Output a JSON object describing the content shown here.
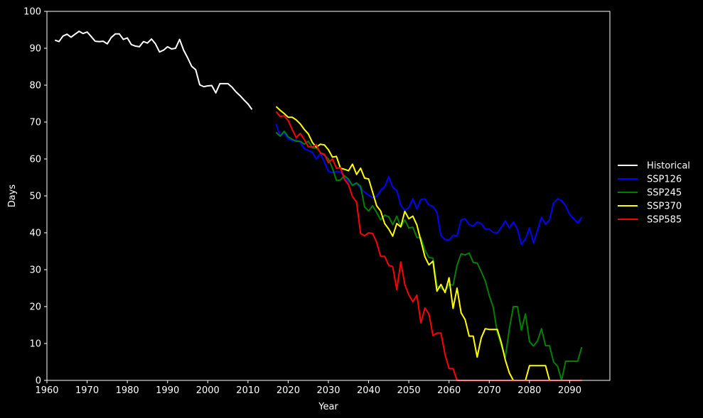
{
  "chart_data": {
    "type": "line",
    "title": "",
    "xlabel": "Year",
    "ylabel": "Days",
    "xlim": [
      1960,
      2100
    ],
    "ylim": [
      0,
      100
    ],
    "xticks": [
      1960,
      1970,
      1980,
      1990,
      2000,
      2010,
      2020,
      2030,
      2040,
      2050,
      2060,
      2070,
      2080,
      2090
    ],
    "yticks": [
      0,
      10,
      20,
      30,
      40,
      50,
      60,
      70,
      80,
      90,
      100
    ],
    "grid": false,
    "legend_position": "right, outside plot",
    "background": "#000000",
    "foreground": "#ffffff",
    "series": [
      {
        "name": "Historical",
        "color": "#ffffff",
        "x": [
          1962,
          1963,
          1964,
          1965,
          1966,
          1967,
          1968,
          1969,
          1970,
          1971,
          1972,
          1973,
          1974,
          1975,
          1976,
          1977,
          1978,
          1979,
          1980,
          1981,
          1982,
          1983,
          1984,
          1985,
          1986,
          1987,
          1988,
          1989,
          1990,
          1991,
          1992,
          1993,
          1994,
          1995,
          1996,
          1997,
          1998,
          1999,
          2000,
          2001,
          2002,
          2003,
          2004,
          2005,
          2006,
          2007,
          2008,
          2009,
          2010,
          2011
        ],
        "y": [
          92.2,
          91.8,
          93.3,
          93.8,
          93.0,
          93.8,
          94.6,
          94.0,
          94.4,
          93.2,
          91.9,
          91.8,
          91.9,
          91.2,
          92.9,
          93.9,
          93.9,
          92.4,
          92.8,
          91.0,
          90.6,
          90.4,
          91.8,
          91.4,
          92.5,
          91.2,
          89.0,
          89.5,
          90.4,
          89.8,
          90.0,
          92.4,
          89.5,
          87.4,
          85.1,
          84.2,
          80.1,
          79.6,
          79.8,
          79.9,
          77.9,
          80.4,
          80.4,
          80.4,
          79.5,
          78.2,
          77.2,
          76.0,
          74.9,
          73.4
        ]
      },
      {
        "name": "SSP126",
        "color": "#0000ff",
        "x": [
          2017,
          2018,
          2019,
          2020,
          2021,
          2022,
          2023,
          2024,
          2025,
          2026,
          2027,
          2028,
          2029,
          2030,
          2031,
          2032,
          2033,
          2034,
          2035,
          2036,
          2037,
          2038,
          2039,
          2040,
          2041,
          2042,
          2043,
          2044,
          2045,
          2046,
          2047,
          2048,
          2049,
          2050,
          2051,
          2052,
          2053,
          2054,
          2055,
          2056,
          2057,
          2058,
          2059,
          2060,
          2061,
          2062,
          2063,
          2064,
          2065,
          2066,
          2067,
          2068,
          2069,
          2070,
          2071,
          2072,
          2073,
          2074,
          2075,
          2076,
          2077,
          2078,
          2079,
          2080,
          2081,
          2082,
          2083,
          2084,
          2085,
          2086,
          2087,
          2088,
          2089,
          2090,
          2091,
          2092,
          2093
        ],
        "y": [
          69.5,
          66.2,
          67.0,
          65.5,
          65.0,
          65.2,
          64.5,
          62.8,
          62.3,
          61.8,
          60.0,
          61.5,
          59.2,
          56.7,
          56.3,
          56.6,
          56.5,
          55.0,
          54.0,
          53.0,
          53.5,
          52.0,
          51.0,
          50.2,
          49.5,
          49.8,
          51.5,
          52.5,
          55.2,
          52.3,
          51.5,
          47.5,
          46.0,
          46.8,
          49.2,
          46.5,
          49.0,
          49.2,
          47.5,
          47.2,
          45.5,
          39.2,
          38.2,
          38.0,
          39.3,
          39.2,
          43.5,
          43.8,
          42.2,
          41.8,
          42.9,
          42.5,
          41.0,
          41.0,
          40.1,
          40.0,
          41.5,
          43.2,
          41.3,
          42.9,
          41.0,
          36.9,
          38.3,
          41.3,
          37.3,
          40.7,
          44.2,
          42.3,
          43.5,
          48.1,
          49.2,
          48.7,
          47.3,
          45.0,
          43.8,
          42.7,
          44.2
        ]
      },
      {
        "name": "SSP245",
        "color": "#008000",
        "x": [
          2017,
          2018,
          2019,
          2020,
          2021,
          2022,
          2023,
          2024,
          2025,
          2026,
          2027,
          2028,
          2029,
          2030,
          2031,
          2032,
          2033,
          2034,
          2035,
          2036,
          2037,
          2038,
          2039,
          2040,
          2041,
          2042,
          2043,
          2044,
          2045,
          2046,
          2047,
          2048,
          2049,
          2050,
          2051,
          2052,
          2053,
          2054,
          2055,
          2056,
          2057,
          2058,
          2059,
          2060,
          2061,
          2062,
          2063,
          2064,
          2065,
          2066,
          2067,
          2068,
          2069,
          2070,
          2071,
          2072,
          2073,
          2074,
          2075,
          2076,
          2077,
          2078,
          2079,
          2080,
          2081,
          2082,
          2083,
          2084,
          2085,
          2086,
          2087,
          2088,
          2089,
          2090,
          2091,
          2092,
          2093
        ],
        "y": [
          67.2,
          66.2,
          67.5,
          66.0,
          65.3,
          64.8,
          64.8,
          64.0,
          64.8,
          63.0,
          63.0,
          61.8,
          61.0,
          60.0,
          57.5,
          54.2,
          54.3,
          55.5,
          54.5,
          52.8,
          53.5,
          52.6,
          47.0,
          45.9,
          47.3,
          45.5,
          43.5,
          44.8,
          44.3,
          42.2,
          44.5,
          41.6,
          43.5,
          41.3,
          41.5,
          38.7,
          38.7,
          35.3,
          33.3,
          33.1,
          25.5,
          25.0,
          24.2,
          26.0,
          25.8,
          31.2,
          34.3,
          34.0,
          34.5,
          32.0,
          31.8,
          29.5,
          27.0,
          23.0,
          19.8,
          13.0,
          9.4,
          6.3,
          14.0,
          20.0,
          20.0,
          13.6,
          18.0,
          10.5,
          9.3,
          10.7,
          14.0,
          9.4,
          9.4,
          5.0,
          3.8,
          0.0,
          5.2,
          5.2,
          5.2,
          5.2,
          9.0
        ]
      },
      {
        "name": "SSP370",
        "color": "#ffff00",
        "x": [
          2017,
          2018,
          2019,
          2020,
          2021,
          2022,
          2023,
          2024,
          2025,
          2026,
          2027,
          2028,
          2029,
          2030,
          2031,
          2032,
          2033,
          2034,
          2035,
          2036,
          2037,
          2038,
          2039,
          2040,
          2041,
          2042,
          2043,
          2044,
          2045,
          2046,
          2047,
          2048,
          2049,
          2050,
          2051,
          2052,
          2053,
          2054,
          2055,
          2056,
          2057,
          2058,
          2059,
          2060,
          2061,
          2062,
          2063,
          2064,
          2065,
          2066,
          2067,
          2068,
          2069,
          2070,
          2071,
          2072,
          2073,
          2074,
          2075,
          2076,
          2077,
          2078,
          2079,
          2080,
          2081,
          2082,
          2083,
          2084,
          2085,
          2086,
          2087,
          2088,
          2089,
          2090,
          2091,
          2092,
          2093
        ],
        "y": [
          74.2,
          73.2,
          72.3,
          71.3,
          71.3,
          70.6,
          69.5,
          68.0,
          66.8,
          64.5,
          63.2,
          64.0,
          63.8,
          62.5,
          60.5,
          60.7,
          57.5,
          57.2,
          56.8,
          58.6,
          55.8,
          57.5,
          54.8,
          54.6,
          51.0,
          47.3,
          45.9,
          42.5,
          41.0,
          39.1,
          42.5,
          41.6,
          45.8,
          43.8,
          44.5,
          42.1,
          37.8,
          33.5,
          31.3,
          32.3,
          24.2,
          26.0,
          23.8,
          27.8,
          19.5,
          25.0,
          18.3,
          16.5,
          12.0,
          12.0,
          6.3,
          11.5,
          14.0,
          13.8,
          13.8,
          13.8,
          10.2,
          5.5,
          2.0,
          0.0,
          0.0,
          0.0,
          0.0,
          4.0,
          4.0,
          4.0,
          4.0,
          4.0,
          0.0,
          0.0,
          0.0,
          0.0,
          0.0,
          0.0,
          0.0,
          0.0,
          0.0
        ]
      },
      {
        "name": "SSP585",
        "color": "#ff0000",
        "x": [
          2017,
          2018,
          2019,
          2020,
          2021,
          2022,
          2023,
          2024,
          2025,
          2026,
          2027,
          2028,
          2029,
          2030,
          2031,
          2032,
          2033,
          2034,
          2035,
          2036,
          2037,
          2038,
          2039,
          2040,
          2041,
          2042,
          2043,
          2044,
          2045,
          2046,
          2047,
          2048,
          2049,
          2050,
          2051,
          2052,
          2053,
          2054,
          2055,
          2056,
          2057,
          2058,
          2059,
          2060,
          2061,
          2062,
          2063,
          2064,
          2065,
          2066,
          2067,
          2068,
          2069,
          2070,
          2071,
          2072,
          2073,
          2074,
          2075,
          2076,
          2077,
          2078,
          2079,
          2080,
          2081,
          2082,
          2083,
          2084,
          2085,
          2086,
          2087,
          2088,
          2089,
          2090,
          2091,
          2092,
          2093
        ],
        "y": [
          72.8,
          71.5,
          71.7,
          70.4,
          68.0,
          65.8,
          66.9,
          65.3,
          63.3,
          63.2,
          63.9,
          61.6,
          61.3,
          59.0,
          60.0,
          57.5,
          57.6,
          54.5,
          53.0,
          49.8,
          48.3,
          39.8,
          39.2,
          40.0,
          39.8,
          37.4,
          33.6,
          33.6,
          31.2,
          30.8,
          24.6,
          32.1,
          26.0,
          23.2,
          21.3,
          23.1,
          15.6,
          19.6,
          18.0,
          12.2,
          12.8,
          12.8,
          7.0,
          3.2,
          3.2,
          0.0,
          0.0,
          0.0,
          0.0,
          0.0,
          0.0,
          0.0,
          0.0,
          0.0,
          0.0,
          0.0,
          0.0,
          0.0,
          0.0,
          0.0,
          0.0,
          0.0,
          0.0,
          0.0,
          0.0,
          0.0,
          0.0,
          0.0,
          0.0,
          0.0,
          0.0,
          0.0,
          0.0,
          0.0,
          0.0,
          0.0,
          0.0
        ]
      }
    ]
  }
}
